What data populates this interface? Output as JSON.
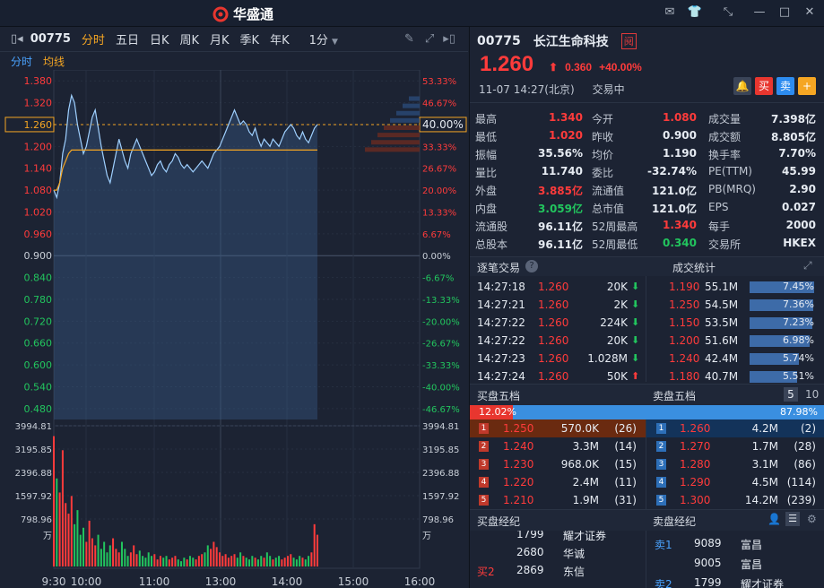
{
  "app": {
    "name": "华盛通"
  },
  "toolbar": {
    "code": "00775",
    "tabs": [
      "分时",
      "五日",
      "日K",
      "周K",
      "月K",
      "季K",
      "年K"
    ],
    "active_tab": "分时",
    "interval": "1分"
  },
  "subbar": {
    "label1": "分时",
    "label2": "均线"
  },
  "colors": {
    "up": "#ff3b3b",
    "down": "#22c55e",
    "accent": "#f5a623",
    "bg": "#1c2333"
  },
  "chart_data": {
    "type": "line",
    "prev_close": 0.9,
    "current": 1.26,
    "price_ticks": [
      "1.380",
      "1.320",
      "1.260",
      "1.200",
      "1.140",
      "1.080",
      "1.020",
      "0.960",
      "0.900",
      "0.840",
      "0.780",
      "0.720",
      "0.660",
      "0.600",
      "0.540",
      "0.480"
    ],
    "pct_ticks": [
      "53.33%",
      "46.67%",
      "40.00%",
      "33.33%",
      "26.67%",
      "20.00%",
      "13.33%",
      "6.67%",
      "0.00%",
      "-6.67%",
      "-13.33%",
      "-20.00%",
      "-26.67%",
      "-33.33%",
      "-40.00%",
      "-46.67%"
    ],
    "vol_ticks": [
      "3994.81",
      "3195.85",
      "2396.88",
      "1597.92",
      "798.96",
      "万"
    ],
    "time_ticks": [
      "9:30",
      "10:00",
      "11:00",
      "13:00",
      "14:00",
      "15:00",
      "16:00"
    ],
    "ylim": [
      0.45,
      1.41
    ],
    "price_series": [
      1.08,
      1.06,
      1.1,
      1.18,
      1.22,
      1.3,
      1.34,
      1.32,
      1.26,
      1.22,
      1.18,
      1.2,
      1.24,
      1.28,
      1.3,
      1.25,
      1.2,
      1.16,
      1.12,
      1.1,
      1.14,
      1.18,
      1.22,
      1.19,
      1.16,
      1.14,
      1.18,
      1.2,
      1.22,
      1.2,
      1.18,
      1.16,
      1.14,
      1.12,
      1.13,
      1.15,
      1.16,
      1.14,
      1.13,
      1.15,
      1.16,
      1.18,
      1.17,
      1.15,
      1.14,
      1.15,
      1.14,
      1.13,
      1.14,
      1.15,
      1.16,
      1.15,
      1.14,
      1.16,
      1.18,
      1.19,
      1.2,
      1.22,
      1.24,
      1.26,
      1.28,
      1.3,
      1.28,
      1.26,
      1.27,
      1.26,
      1.24,
      1.23,
      1.25,
      1.22,
      1.2,
      1.22,
      1.21,
      1.2,
      1.22,
      1.21,
      1.2,
      1.22,
      1.24,
      1.25,
      1.26,
      1.25,
      1.23,
      1.22,
      1.24,
      1.22,
      1.21,
      1.23,
      1.25,
      1.26
    ],
    "avg_series": [
      1.08,
      1.08,
      1.1,
      1.14,
      1.16,
      1.18,
      1.19,
      1.19,
      1.19,
      1.19,
      1.19,
      1.19,
      1.19,
      1.19,
      1.19,
      1.19,
      1.19,
      1.19,
      1.19,
      1.19,
      1.19,
      1.19,
      1.19,
      1.19,
      1.19,
      1.19,
      1.19,
      1.19,
      1.19,
      1.19,
      1.19,
      1.19,
      1.19,
      1.19,
      1.19,
      1.19,
      1.19,
      1.19,
      1.19,
      1.19,
      1.19,
      1.19,
      1.19,
      1.19,
      1.19,
      1.19,
      1.19,
      1.19,
      1.19,
      1.19,
      1.19,
      1.19,
      1.19,
      1.19,
      1.19,
      1.19,
      1.19,
      1.19,
      1.19,
      1.19,
      1.19,
      1.19,
      1.19,
      1.19,
      1.19,
      1.19,
      1.19,
      1.19,
      1.19,
      1.19,
      1.19,
      1.19,
      1.19,
      1.19,
      1.19,
      1.19,
      1.19,
      1.19,
      1.19,
      1.19,
      1.19,
      1.19,
      1.19,
      1.19,
      1.19,
      1.19,
      1.19,
      1.19,
      1.19,
      1.19
    ],
    "volume_max": 3994.81,
    "volume_series": [
      3700,
      2500,
      2100,
      3300,
      1800,
      1500,
      2000,
      1200,
      1600,
      900,
      1100,
      700,
      1300,
      800,
      600,
      900,
      500,
      700,
      400,
      600,
      800,
      500,
      400,
      700,
      500,
      300,
      400,
      600,
      350,
      450,
      300,
      250,
      400,
      300,
      350,
      200,
      300,
      250,
      300,
      200,
      250,
      300,
      200,
      150,
      250,
      200,
      300,
      250,
      200,
      300,
      350,
      400,
      600,
      500,
      700,
      550,
      400,
      300,
      350,
      250,
      300,
      350,
      250,
      400,
      300,
      250,
      200,
      300,
      250,
      200,
      300,
      250,
      400,
      300,
      200,
      250,
      300,
      200,
      250,
      300,
      350,
      250,
      200,
      300,
      250,
      200,
      300,
      400,
      1200,
      900
    ]
  },
  "quote": {
    "code": "00775",
    "name": "长江生命科技",
    "badge": "阋",
    "price": "1.260",
    "change": "0.360",
    "change_pct": "+40.00%",
    "date": "11-07",
    "time": "14:27(北京)",
    "status": "交易中",
    "buy_btn": "买",
    "sell_btn": "卖"
  },
  "stats": [
    [
      [
        "最高",
        "1.340",
        "red"
      ],
      [
        "今开",
        "1.080",
        "red"
      ],
      [
        "成交量",
        "7.398亿",
        "white"
      ]
    ],
    [
      [
        "最低",
        "1.020",
        "red"
      ],
      [
        "昨收",
        "0.900",
        "white"
      ],
      [
        "成交额",
        "8.805亿",
        "white"
      ]
    ],
    [
      [
        "振幅",
        "35.56%",
        "white"
      ],
      [
        "均价",
        "1.190",
        "white"
      ],
      [
        "换手率",
        "7.70%",
        "white"
      ]
    ],
    [
      [
        "量比",
        "11.740",
        "white"
      ],
      [
        "委比",
        "-32.74%",
        "white"
      ],
      [
        "PE(TTM)",
        "45.99",
        "white"
      ]
    ],
    [
      [
        "外盘",
        "3.885亿",
        "red"
      ],
      [
        "流通值",
        "121.0亿",
        "white"
      ],
      [
        "PB(MRQ)",
        "2.90",
        "white"
      ]
    ],
    [
      [
        "内盘",
        "3.059亿",
        "green"
      ],
      [
        "总市值",
        "121.0亿",
        "white"
      ],
      [
        "EPS",
        "0.027",
        "white"
      ]
    ],
    [
      [
        "流通股",
        "96.11亿",
        "white"
      ],
      [
        "52周最高",
        "1.340",
        "red"
      ],
      [
        "每手",
        "2000",
        "white"
      ]
    ],
    [
      [
        "总股本",
        "96.11亿",
        "white"
      ],
      [
        "52周最低",
        "0.340",
        "green"
      ],
      [
        "交易所",
        "HKEX",
        "white"
      ]
    ]
  ],
  "ticks": {
    "title": "逐笔交易",
    "rows": [
      {
        "time": "14:27:18",
        "price": "1.260",
        "vol": "20K",
        "dir": "down"
      },
      {
        "time": "14:27:21",
        "price": "1.260",
        "vol": "2K",
        "dir": "down"
      },
      {
        "time": "14:27:22",
        "price": "1.260",
        "vol": "224K",
        "dir": "down"
      },
      {
        "time": "14:27:22",
        "price": "1.260",
        "vol": "20K",
        "dir": "down"
      },
      {
        "time": "14:27:23",
        "price": "1.260",
        "vol": "1.028M",
        "dir": "down"
      },
      {
        "time": "14:27:24",
        "price": "1.260",
        "vol": "50K",
        "dir": "up"
      }
    ]
  },
  "vol_stats": {
    "title": "成交统计",
    "rows": [
      {
        "price": "1.190",
        "vol": "55.1M",
        "pct": "7.45%",
        "frac": 0.745
      },
      {
        "price": "1.250",
        "vol": "54.5M",
        "pct": "7.36%",
        "frac": 0.736
      },
      {
        "price": "1.150",
        "vol": "53.5M",
        "pct": "7.23%",
        "frac": 0.723
      },
      {
        "price": "1.200",
        "vol": "51.6M",
        "pct": "6.98%",
        "frac": 0.698
      },
      {
        "price": "1.240",
        "vol": "42.4M",
        "pct": "5.74%",
        "frac": 0.574
      },
      {
        "price": "1.180",
        "vol": "40.7M",
        "pct": "5.51%",
        "frac": 0.551
      }
    ]
  },
  "order_book": {
    "bid_title": "买盘五档",
    "ask_title": "卖盘五档",
    "levels_a": "5",
    "levels_b": "10",
    "bid_pct": "12.02%",
    "ask_pct": "87.98%",
    "bid_frac": 0.1202,
    "bids": [
      {
        "lvl": "1",
        "price": "1.250",
        "vol": "570.0K",
        "n": "(26)"
      },
      {
        "lvl": "2",
        "price": "1.240",
        "vol": "3.3M",
        "n": "(14)"
      },
      {
        "lvl": "3",
        "price": "1.230",
        "vol": "968.0K",
        "n": "(15)"
      },
      {
        "lvl": "4",
        "price": "1.220",
        "vol": "2.4M",
        "n": "(11)"
      },
      {
        "lvl": "5",
        "price": "1.210",
        "vol": "1.9M",
        "n": "(31)"
      }
    ],
    "asks": [
      {
        "lvl": "1",
        "price": "1.260",
        "vol": "4.2M",
        "n": "(2)"
      },
      {
        "lvl": "2",
        "price": "1.270",
        "vol": "1.7M",
        "n": "(28)"
      },
      {
        "lvl": "3",
        "price": "1.280",
        "vol": "3.1M",
        "n": "(86)"
      },
      {
        "lvl": "4",
        "price": "1.290",
        "vol": "4.5M",
        "n": "(114)"
      },
      {
        "lvl": "5",
        "price": "1.300",
        "vol": "14.2M",
        "n": "(239)"
      }
    ]
  },
  "brokers": {
    "bid_title": "买盘经纪",
    "ask_title": "卖盘经纪",
    "bid_rows": [
      {
        "tag": "",
        "code": "1799",
        "name": "耀才证券"
      },
      {
        "tag": "",
        "code": "2680",
        "name": "华诚"
      },
      {
        "tag": "买2",
        "code": "2869",
        "name": "东信"
      }
    ],
    "ask_rows": [
      {
        "tag": "卖1",
        "code": "9089",
        "name": "富昌"
      },
      {
        "tag": "",
        "code": "9005",
        "name": "富昌"
      },
      {
        "tag": "卖2",
        "code": "1799",
        "name": "耀才证券"
      }
    ]
  }
}
